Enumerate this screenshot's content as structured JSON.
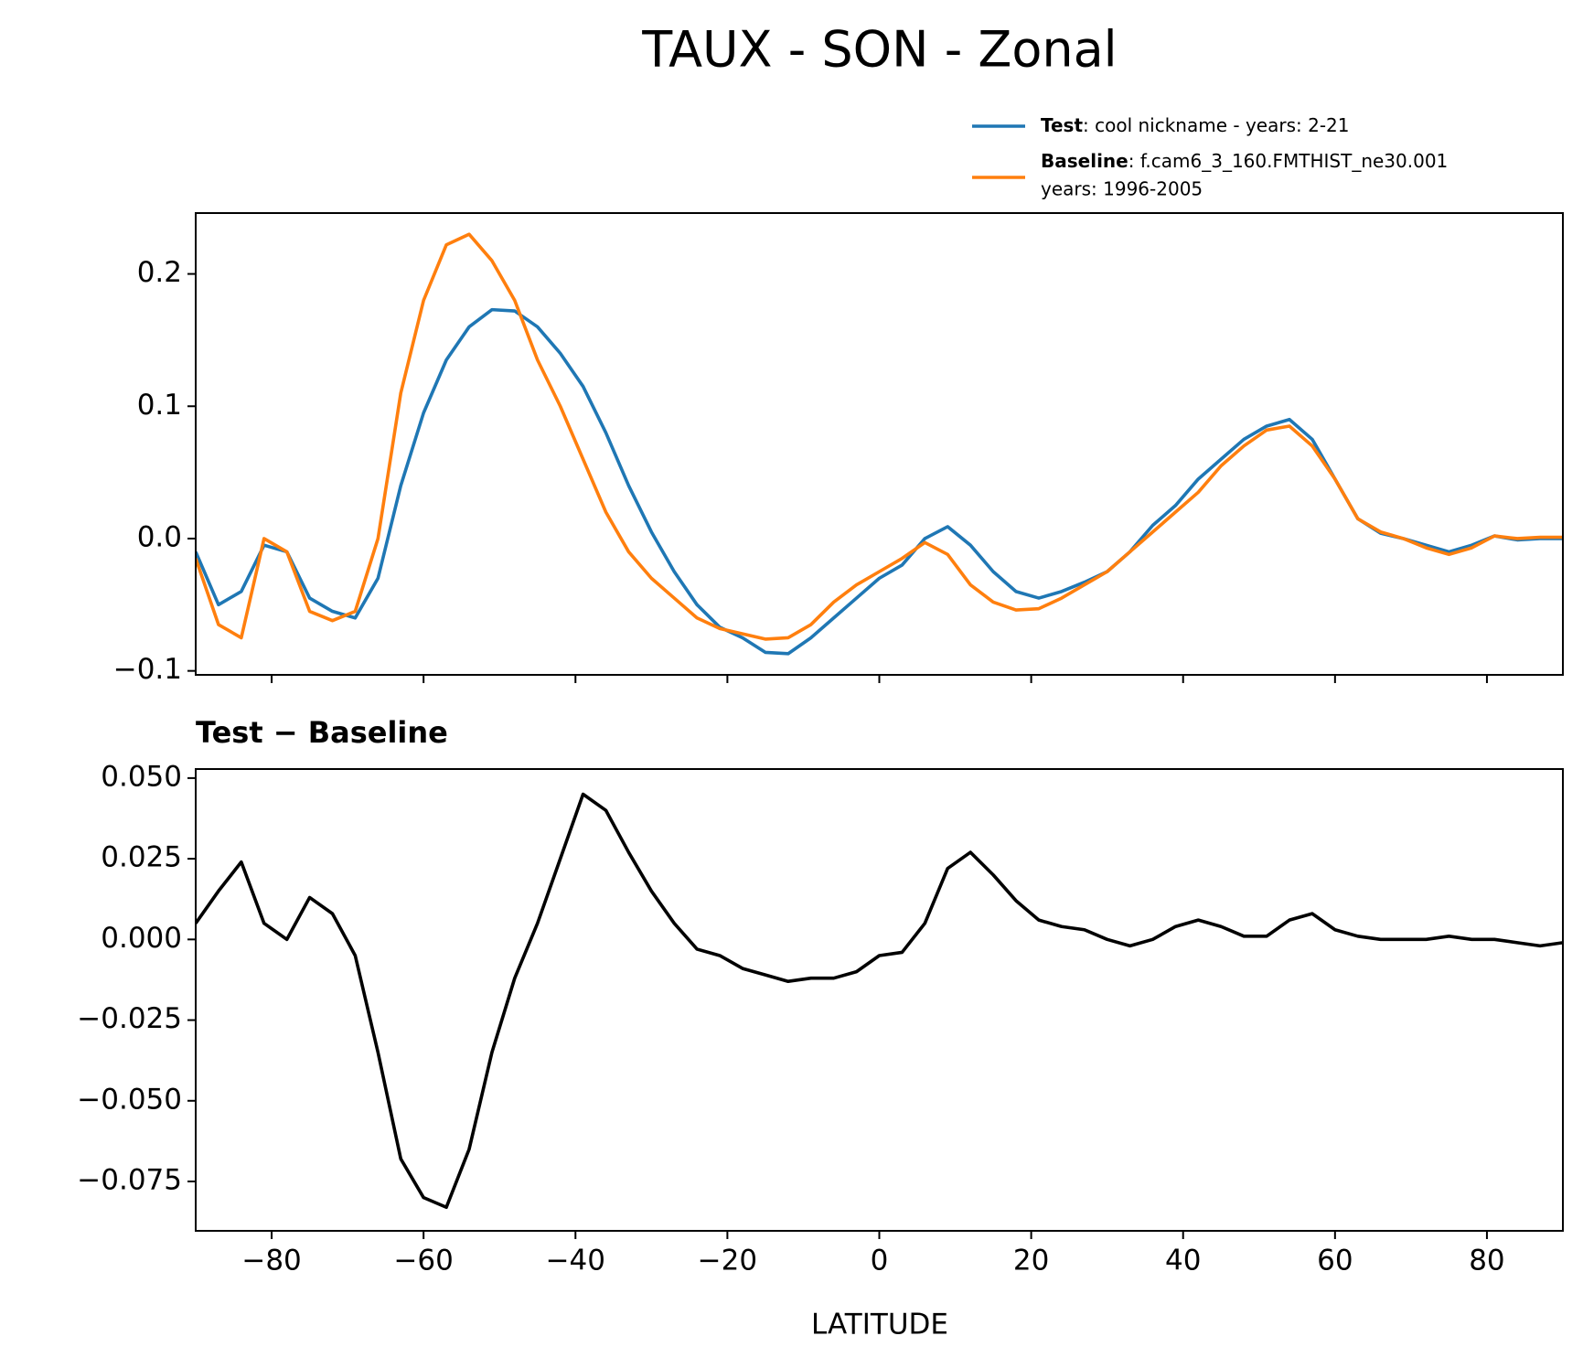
{
  "chart_data": [
    {
      "type": "line",
      "title": "TAUX - SON - Zonal",
      "x": [
        -90,
        -87,
        -84,
        -81,
        -78,
        -75,
        -72,
        -69,
        -66,
        -63,
        -60,
        -57,
        -54,
        -51,
        -48,
        -45,
        -42,
        -39,
        -36,
        -33,
        -30,
        -27,
        -24,
        -21,
        -18,
        -15,
        -12,
        -9,
        -6,
        -3,
        0,
        3,
        6,
        9,
        12,
        15,
        18,
        21,
        24,
        27,
        30,
        33,
        36,
        39,
        42,
        45,
        48,
        51,
        54,
        57,
        60,
        63,
        66,
        69,
        72,
        75,
        78,
        81,
        84,
        87,
        90
      ],
      "series": [
        {
          "name": "Test",
          "description": [
            ": cool nickname - years: 2-21"
          ],
          "color": "#1f77b4",
          "values": [
            -0.01,
            -0.05,
            -0.04,
            -0.005,
            -0.01,
            -0.045,
            -0.055,
            -0.06,
            -0.03,
            0.04,
            0.095,
            0.135,
            0.16,
            0.173,
            0.172,
            0.16,
            0.14,
            0.115,
            0.08,
            0.04,
            0.005,
            -0.025,
            -0.05,
            -0.067,
            -0.075,
            -0.086,
            -0.087,
            -0.075,
            -0.06,
            -0.045,
            -0.03,
            -0.02,
            0.0,
            0.009,
            -0.005,
            -0.025,
            -0.04,
            -0.045,
            -0.04,
            -0.033,
            -0.025,
            -0.01,
            0.01,
            0.025,
            0.045,
            0.06,
            0.075,
            0.085,
            0.09,
            0.075,
            0.045,
            0.015,
            0.004,
            0.0,
            -0.005,
            -0.01,
            -0.005,
            0.002,
            -0.001,
            0.0,
            0.0
          ]
        },
        {
          "name": "Baseline",
          "description": [
            ": f.cam6_3_160.FMTHIST_ne30.001",
            "years: 1996-2005"
          ],
          "color": "#ff7f0e",
          "values": [
            -0.015,
            -0.065,
            -0.075,
            0.0,
            -0.01,
            -0.055,
            -0.062,
            -0.055,
            0.0,
            0.11,
            0.18,
            0.222,
            0.23,
            0.21,
            0.18,
            0.135,
            0.1,
            0.06,
            0.02,
            -0.01,
            -0.03,
            -0.045,
            -0.06,
            -0.068,
            -0.072,
            -0.076,
            -0.075,
            -0.065,
            -0.048,
            -0.035,
            -0.025,
            -0.015,
            -0.003,
            -0.012,
            -0.035,
            -0.048,
            -0.054,
            -0.053,
            -0.045,
            -0.035,
            -0.025,
            -0.01,
            0.005,
            0.02,
            0.035,
            0.055,
            0.07,
            0.082,
            0.085,
            0.07,
            0.045,
            0.015,
            0.005,
            0.0,
            -0.007,
            -0.012,
            -0.007,
            0.002,
            0.0,
            0.001,
            0.001
          ]
        }
      ],
      "xlim": [
        -90,
        90
      ],
      "xticks": [
        -80,
        -60,
        -40,
        -20,
        0,
        20,
        40,
        60,
        80
      ],
      "show_xticklabels": false,
      "ylim": [
        -0.103,
        0.246
      ],
      "yticks": [
        {
          "value": -0.1,
          "label": "−0.1"
        },
        {
          "value": 0,
          "label": "0.0"
        },
        0.1,
        0.2
      ],
      "legend": "upper right"
    },
    {
      "type": "line",
      "title": "Test − Baseline",
      "xlabel": "LATITUDE",
      "x": [
        -90,
        -87,
        -84,
        -81,
        -78,
        -75,
        -72,
        -69,
        -66,
        -63,
        -60,
        -57,
        -54,
        -51,
        -48,
        -45,
        -42,
        -39,
        -36,
        -33,
        -30,
        -27,
        -24,
        -21,
        -18,
        -15,
        -12,
        -9,
        -6,
        -3,
        0,
        3,
        6,
        9,
        12,
        15,
        18,
        21,
        24,
        27,
        30,
        33,
        36,
        39,
        42,
        45,
        48,
        51,
        54,
        57,
        60,
        63,
        66,
        69,
        72,
        75,
        78,
        81,
        84,
        87,
        90
      ],
      "series": [
        {
          "color": "#000000",
          "values": [
            0.005,
            0.015,
            0.024,
            0.005,
            0.0,
            0.013,
            0.008,
            -0.005,
            -0.035,
            -0.068,
            -0.08,
            -0.083,
            -0.065,
            -0.035,
            -0.012,
            0.005,
            0.025,
            0.045,
            0.04,
            0.027,
            0.015,
            0.005,
            -0.003,
            -0.005,
            -0.009,
            -0.011,
            -0.013,
            -0.012,
            -0.012,
            -0.01,
            -0.005,
            -0.004,
            0.005,
            0.022,
            0.027,
            0.02,
            0.012,
            0.006,
            0.004,
            0.003,
            0.0,
            -0.002,
            0.0,
            0.004,
            0.006,
            0.004,
            0.001,
            0.001,
            0.006,
            0.008,
            0.003,
            0.001,
            0.0,
            0.0,
            0.0,
            0.001,
            0.0,
            0.0,
            -0.001,
            -0.002,
            -0.001
          ]
        }
      ],
      "xlim": [
        -90,
        90
      ],
      "xticks": [
        {
          "value": -80,
          "label": "−80"
        },
        {
          "value": -60,
          "label": "−60"
        },
        {
          "value": -40,
          "label": "−40"
        },
        {
          "value": -20,
          "label": "−20"
        },
        0,
        20,
        40,
        60,
        80
      ],
      "show_xticklabels": true,
      "ylim": [
        -0.0903,
        0.0528
      ],
      "yticks": [
        {
          "value": -0.075,
          "label": "−0.075"
        },
        {
          "value": -0.05,
          "label": "−0.050"
        },
        {
          "value": -0.025,
          "label": "−0.025"
        },
        {
          "value": 0,
          "label": "0.000"
        },
        {
          "value": 0.025,
          "label": "0.025"
        },
        {
          "value": 0.05,
          "label": "0.050"
        }
      ]
    }
  ]
}
